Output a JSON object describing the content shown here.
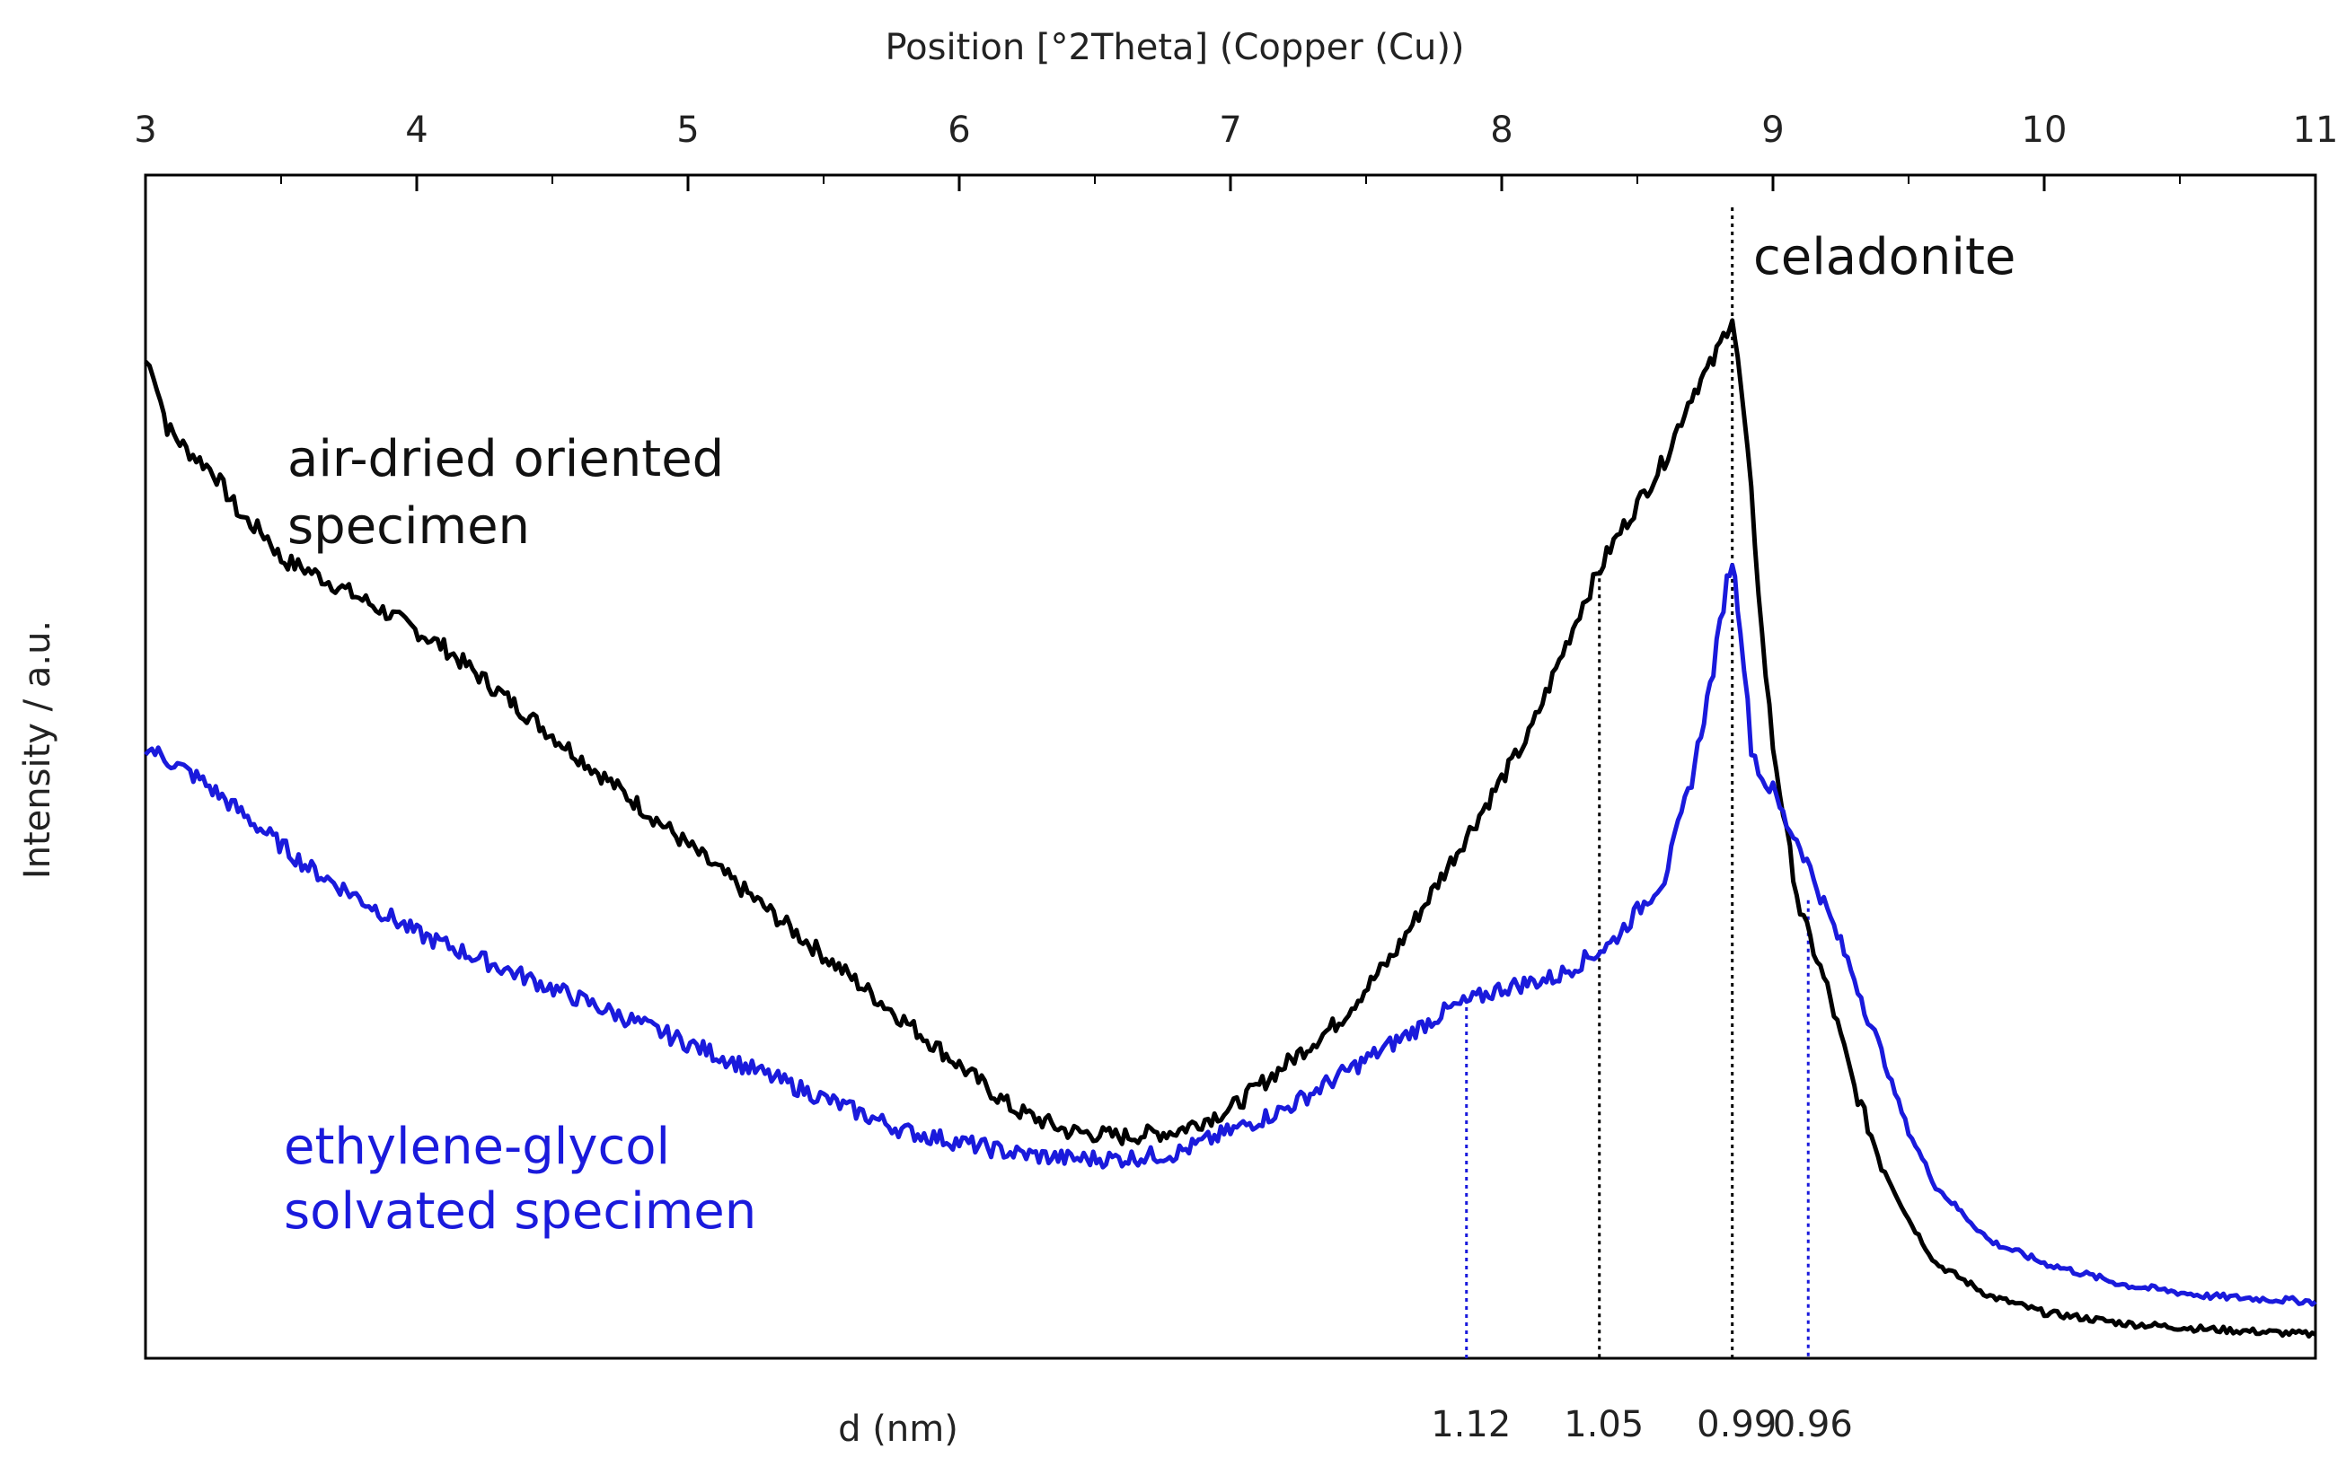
{
  "chart_data": {
    "type": "line",
    "title": "",
    "xlabel_top": "Position [°2Theta] (Copper (Cu))",
    "ylabel": "Intensity / a.u.",
    "xlabel_bottom": "d (nm)",
    "xlim": [
      3,
      11
    ],
    "ylim": [
      0,
      100
    ],
    "x_ticks": [
      "3",
      "4",
      "5",
      "6",
      "7",
      "8",
      "9",
      "10",
      "11"
    ],
    "grid": false,
    "series": [
      {
        "name": "air-dried oriented specimen",
        "label_lines": [
          "air-dried oriented",
          "specimen"
        ],
        "color": "#000000",
        "points": [
          [
            3.0,
            90
          ],
          [
            3.03,
            89
          ],
          [
            3.08,
            84
          ],
          [
            3.15,
            82
          ],
          [
            3.25,
            80
          ],
          [
            3.35,
            76
          ],
          [
            3.45,
            74
          ],
          [
            3.5,
            72
          ],
          [
            3.6,
            71
          ],
          [
            3.75,
            69
          ],
          [
            3.9,
            67
          ],
          [
            4.1,
            64
          ],
          [
            4.3,
            60
          ],
          [
            4.5,
            56
          ],
          [
            4.8,
            50
          ],
          [
            5.1,
            44
          ],
          [
            5.4,
            38
          ],
          [
            5.7,
            32
          ],
          [
            6.0,
            26
          ],
          [
            6.2,
            22
          ],
          [
            6.4,
            20
          ],
          [
            6.6,
            19.5
          ],
          [
            6.8,
            20
          ],
          [
            7.0,
            22
          ],
          [
            7.2,
            26
          ],
          [
            7.4,
            30
          ],
          [
            7.6,
            36
          ],
          [
            7.8,
            44
          ],
          [
            8.0,
            52
          ],
          [
            8.1,
            56
          ],
          [
            8.2,
            62
          ],
          [
            8.3,
            68
          ],
          [
            8.4,
            73
          ],
          [
            8.5,
            77
          ],
          [
            8.6,
            81
          ],
          [
            8.7,
            87
          ],
          [
            8.78,
            90
          ],
          [
            8.83,
            93
          ],
          [
            8.85,
            94
          ],
          [
            8.88,
            88
          ],
          [
            8.92,
            78
          ],
          [
            8.96,
            65
          ],
          [
            9.0,
            55
          ],
          [
            9.05,
            47
          ],
          [
            9.1,
            40
          ],
          [
            9.2,
            33
          ],
          [
            9.3,
            24
          ],
          [
            9.4,
            17
          ],
          [
            9.5,
            12
          ],
          [
            9.6,
            8
          ],
          [
            9.8,
            5
          ],
          [
            10.0,
            3.5
          ],
          [
            10.3,
            2.5
          ],
          [
            10.6,
            2
          ],
          [
            11.0,
            1.5
          ]
        ]
      },
      {
        "name": "ethylene-glycol solvated specimen",
        "label_lines": [
          "ethylene-glycol",
          "solvated specimen"
        ],
        "color": "#1a1adc",
        "points": [
          [
            3.0,
            55
          ],
          [
            3.2,
            52
          ],
          [
            3.4,
            48
          ],
          [
            3.6,
            44
          ],
          [
            3.8,
            41
          ],
          [
            4.0,
            38
          ],
          [
            4.3,
            35
          ],
          [
            4.6,
            32
          ],
          [
            4.9,
            29
          ],
          [
            5.2,
            26
          ],
          [
            5.5,
            23
          ],
          [
            5.8,
            20
          ],
          [
            6.0,
            19
          ],
          [
            6.2,
            18
          ],
          [
            6.4,
            17.5
          ],
          [
            6.6,
            17.5
          ],
          [
            6.8,
            18
          ],
          [
            7.0,
            20
          ],
          [
            7.2,
            22
          ],
          [
            7.4,
            25
          ],
          [
            7.6,
            28
          ],
          [
            7.8,
            31
          ],
          [
            8.0,
            33
          ],
          [
            8.2,
            34
          ],
          [
            8.4,
            37
          ],
          [
            8.5,
            40
          ],
          [
            8.6,
            43
          ],
          [
            8.7,
            52
          ],
          [
            8.78,
            62
          ],
          [
            8.83,
            70
          ],
          [
            8.85,
            72
          ],
          [
            8.88,
            66
          ],
          [
            8.92,
            55
          ],
          [
            8.96,
            52
          ],
          [
            9.0,
            51
          ],
          [
            9.05,
            48
          ],
          [
            9.1,
            46
          ],
          [
            9.2,
            40
          ],
          [
            9.3,
            34
          ],
          [
            9.4,
            27
          ],
          [
            9.5,
            20
          ],
          [
            9.6,
            15
          ],
          [
            9.8,
            10
          ],
          [
            10.0,
            8
          ],
          [
            10.3,
            6
          ],
          [
            10.6,
            5
          ],
          [
            11.0,
            4.5
          ]
        ]
      }
    ],
    "reference_lines": [
      {
        "x": 7.87,
        "d": "1.12",
        "color": "#1a1adc",
        "top": 32
      },
      {
        "x": 8.36,
        "d": "1.05",
        "color": "#000000",
        "top": 71
      },
      {
        "x": 8.85,
        "d": "0.99",
        "color": "#000000",
        "top": 104
      },
      {
        "x": 9.13,
        "d": "0.96",
        "color": "#1a1adc",
        "top": 41
      }
    ],
    "mineral_label": "celadonite"
  }
}
